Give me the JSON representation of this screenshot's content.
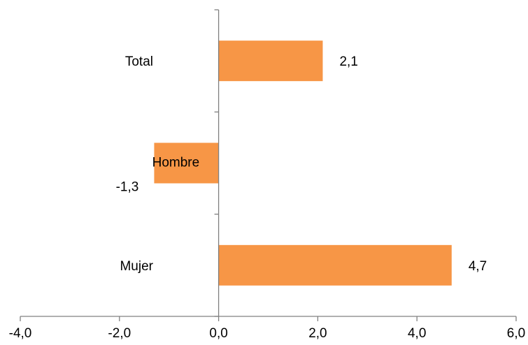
{
  "chart_data": {
    "type": "bar",
    "orientation": "horizontal",
    "categories": [
      "Total",
      "Hombre",
      "Mujer"
    ],
    "values": [
      2.1,
      -1.3,
      4.7
    ],
    "value_labels": [
      "2,1",
      "-1,3",
      "4,7"
    ],
    "xlim": [
      -4.0,
      6.0
    ],
    "x_ticks": [
      -4.0,
      -2.0,
      0.0,
      2.0,
      4.0,
      6.0
    ],
    "x_tick_labels": [
      "-4,0",
      "-2,0",
      "0,0",
      "2,0",
      "4,0",
      "6,0"
    ],
    "title": "",
    "xlabel": "",
    "ylabel": "",
    "grid": false,
    "legend": "none",
    "bar_color": "#F79646",
    "axis_color": "#808080"
  }
}
